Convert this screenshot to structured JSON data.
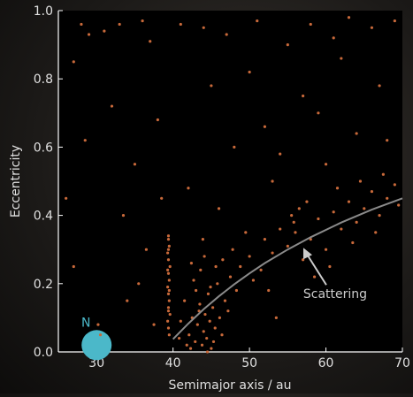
{
  "chart_data": {
    "type": "scatter",
    "xlabel": "Semimajor axis / au",
    "ylabel": "Eccentricity",
    "xlim": [
      25,
      70
    ],
    "ylim": [
      0,
      1
    ],
    "xticks": [
      30,
      40,
      50,
      60,
      70
    ],
    "yticks": [
      {
        "value": 0,
        "label": "0.0"
      },
      {
        "value": 0.2,
        "label": "0.2"
      },
      {
        "value": 0.4,
        "label": "0.4"
      },
      {
        "value": 0.6,
        "label": "0.6"
      },
      {
        "value": 0.8,
        "label": "0.8"
      },
      {
        "value": 1,
        "label": "1.0"
      }
    ],
    "series": [
      {
        "color": "#c8693a",
        "x": [
          39.4,
          39.5,
          39.3,
          39.4,
          39.6,
          39.4,
          39.5,
          39.3,
          39.4,
          39.5,
          39.4,
          39.6,
          39.3,
          39.4,
          39.5,
          39.4,
          39.3,
          39.5,
          39.4,
          39.4,
          42.1,
          42.5,
          42.9,
          43.2,
          43.5,
          43.8,
          44.0,
          44.2,
          44.4,
          44.6,
          44.8,
          45.0,
          45.2,
          45.5,
          45.8,
          46.1,
          46.4,
          46.8,
          47.2,
          47.5,
          43.0,
          43.6,
          44.1,
          42.7,
          41.5,
          41.0,
          40.8,
          42.3,
          43.4,
          44.9,
          45.6,
          46.5,
          47.8,
          48.3,
          48.8,
          43.9,
          42.4,
          41.8,
          44.5,
          45.3,
          50,
          51.5,
          52,
          53,
          54,
          55,
          55.5,
          56,
          56.5,
          55.8,
          57,
          58,
          59,
          60,
          61,
          62,
          63,
          64,
          65,
          66,
          67,
          68,
          69,
          69.5,
          66.5,
          63.5,
          60.5,
          58.5,
          52.5,
          50.5,
          49.5,
          53.5,
          57.5,
          61.5,
          64.5,
          67.5,
          27,
          28,
          29,
          31,
          33,
          36,
          37,
          41,
          44,
          47,
          51,
          55,
          58,
          61,
          63,
          66,
          69,
          26,
          27,
          28.5,
          32,
          33.5,
          34,
          35,
          36.5,
          37.5,
          38,
          42,
          45,
          48,
          50,
          52,
          54,
          57,
          59,
          62,
          64,
          67,
          68,
          46,
          53,
          60,
          35.5,
          30.5,
          30.2,
          38.5
        ],
        "values": [
          0.33,
          0.31,
          0.29,
          0.27,
          0.25,
          0.23,
          0.21,
          0.19,
          0.17,
          0.15,
          0.13,
          0.11,
          0.09,
          0.07,
          0.05,
          0.3,
          0.24,
          0.18,
          0.12,
          0.34,
          0.05,
          0.1,
          0.03,
          0.08,
          0.14,
          0.02,
          0.06,
          0.11,
          0.04,
          0.17,
          0.09,
          0.01,
          0.13,
          0.07,
          0.2,
          0.1,
          0.05,
          0.15,
          0.12,
          0.22,
          0.18,
          0.24,
          0.28,
          0.21,
          0.15,
          0.09,
          0.04,
          0.01,
          0.12,
          0.19,
          0.25,
          0.27,
          0.3,
          0.18,
          0.25,
          0.33,
          0.26,
          0.02,
          0.0,
          0.03,
          0.28,
          0.24,
          0.33,
          0.29,
          0.36,
          0.31,
          0.4,
          0.35,
          0.42,
          0.38,
          0.27,
          0.33,
          0.39,
          0.3,
          0.41,
          0.36,
          0.44,
          0.38,
          0.42,
          0.47,
          0.4,
          0.45,
          0.49,
          0.43,
          0.35,
          0.32,
          0.25,
          0.22,
          0.18,
          0.21,
          0.35,
          0.1,
          0.44,
          0.48,
          0.5,
          0.52,
          0.85,
          0.96,
          0.93,
          0.94,
          0.96,
          0.97,
          0.91,
          0.96,
          0.95,
          0.93,
          0.97,
          0.9,
          0.96,
          0.92,
          0.98,
          0.95,
          0.97,
          0.45,
          0.25,
          0.62,
          0.72,
          0.4,
          0.15,
          0.55,
          0.3,
          0.08,
          0.68,
          0.48,
          0.78,
          0.6,
          0.82,
          0.66,
          0.58,
          0.75,
          0.7,
          0.86,
          0.64,
          0.78,
          0.62,
          0.42,
          0.5,
          0.55,
          0.2,
          0.05,
          0.08,
          0.45
        ]
      }
    ],
    "curve": {
      "color": "#8a8a8a",
      "x": [
        40,
        42,
        44,
        46,
        48,
        50,
        52,
        55,
        58,
        62,
        66,
        70
      ],
      "values": [
        0.0375,
        0.083,
        0.125,
        0.163,
        0.198,
        0.23,
        0.26,
        0.3,
        0.336,
        0.379,
        0.417,
        0.45
      ]
    },
    "annotation": {
      "text": "Scattering",
      "x": 56,
      "y": 0.16
    },
    "planet": {
      "label": "N",
      "x": 30,
      "y": 0.02,
      "color": "#4bb8c9"
    }
  }
}
